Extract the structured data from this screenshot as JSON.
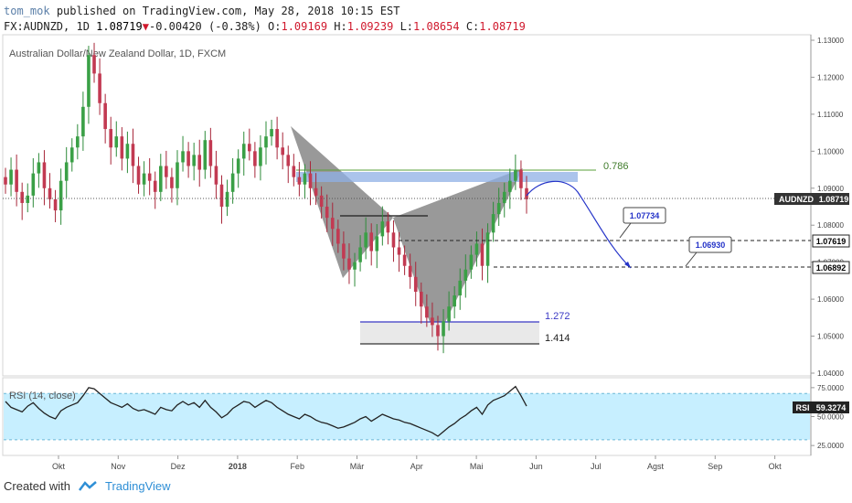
{
  "header": {
    "author": "tom_mok",
    "published": "published on TradingView.com, May 28, 2018 10:15 EST",
    "symbol": "FX:AUDNZD, 1D",
    "last": "1.08719",
    "change": "-0.00420 (-0.38%)",
    "o_label": "O:",
    "o": "1.09169",
    "h_label": "H:",
    "h": "1.09239",
    "l_label": "L:",
    "l": "1.08654",
    "c_label": "C:",
    "c": "1.08719"
  },
  "footer": {
    "created_with": "Created with",
    "brand": "TradingView"
  },
  "chart_data": [
    {
      "type": "candlestick",
      "title": "Australian Dollar/New Zealand Dollar, 1D, FXCM",
      "symbol_badge": "AUDNZD",
      "last_price_label": "1.08719",
      "y_ticks": [
        "1.13000",
        "1.12000",
        "1.11000",
        "1.10000",
        "1.09000",
        "1.08000",
        "1.07000",
        "1.06000",
        "1.05000",
        "1.04000"
      ],
      "ylim": [
        1.04,
        1.13
      ],
      "x_ticks": [
        "Okt",
        "Nov",
        "Dez",
        "2018",
        "Feb",
        "Mär",
        "Apr",
        "Mai",
        "Jun",
        "Jul",
        "Agst",
        "Sep",
        "Okt"
      ],
      "close_approx": [
        1.091,
        1.095,
        1.089,
        1.086,
        1.088,
        1.094,
        1.097,
        1.09,
        1.087,
        1.084,
        1.092,
        1.097,
        1.101,
        1.104,
        1.112,
        1.126,
        1.121,
        1.113,
        1.106,
        1.101,
        1.104,
        1.098,
        1.102,
        1.096,
        1.091,
        1.094,
        1.092,
        1.089,
        1.096,
        1.093,
        1.09,
        1.097,
        1.1,
        1.096,
        1.099,
        1.095,
        1.103,
        1.096,
        1.091,
        1.085,
        1.089,
        1.094,
        1.098,
        1.102,
        1.1,
        1.096,
        1.101,
        1.104,
        1.106,
        1.101,
        1.099,
        1.096,
        1.093,
        1.091,
        1.094,
        1.09,
        1.088,
        1.085,
        1.082,
        1.079,
        1.075,
        1.071,
        1.068,
        1.07,
        1.074,
        1.078,
        1.073,
        1.077,
        1.081,
        1.078,
        1.074,
        1.072,
        1.069,
        1.066,
        1.062,
        1.058,
        1.055,
        1.053,
        1.05,
        1.054,
        1.058,
        1.061,
        1.065,
        1.068,
        1.072,
        1.075,
        1.069,
        1.078,
        1.083,
        1.086,
        1.089,
        1.092,
        1.095,
        1.09,
        1.087
      ],
      "annotations": {
        "fib_786": "0.786",
        "fib_1272": "1.272",
        "fib_1414": "1.414",
        "target1_price": "1.07619",
        "target2_price": "1.06892",
        "callout1": "1.07734",
        "callout2": "1.06930",
        "level_1272_value": 1.0545,
        "level_1414_value": 1.0485,
        "level_786_value": 1.0945,
        "target1_value": 1.07619,
        "target2_value": 1.06892,
        "last_value": 1.08719
      }
    },
    {
      "type": "line",
      "title": "RSI (14, close)",
      "badge_label": "RSI",
      "last_value_label": "59.3274",
      "y_ticks": [
        "75.0000",
        "50.0000",
        "25.0000"
      ],
      "ylim": [
        18,
        82
      ],
      "band": [
        30,
        70
      ],
      "values_approx": [
        63,
        58,
        56,
        54,
        59,
        62,
        57,
        53,
        50,
        48,
        55,
        58,
        60,
        62,
        68,
        75,
        74,
        70,
        66,
        62,
        60,
        58,
        61,
        57,
        55,
        56,
        54,
        52,
        58,
        56,
        55,
        60,
        63,
        60,
        62,
        58,
        64,
        58,
        54,
        49,
        52,
        57,
        60,
        63,
        62,
        58,
        61,
        64,
        62,
        58,
        55,
        52,
        50,
        48,
        52,
        50,
        47,
        45,
        44,
        42,
        40,
        41,
        43,
        45,
        48,
        50,
        46,
        49,
        52,
        50,
        48,
        47,
        45,
        44,
        42,
        40,
        38,
        36,
        33,
        37,
        41,
        44,
        48,
        51,
        55,
        58,
        52,
        60,
        64,
        66,
        68,
        72,
        76,
        68,
        59
      ]
    }
  ]
}
